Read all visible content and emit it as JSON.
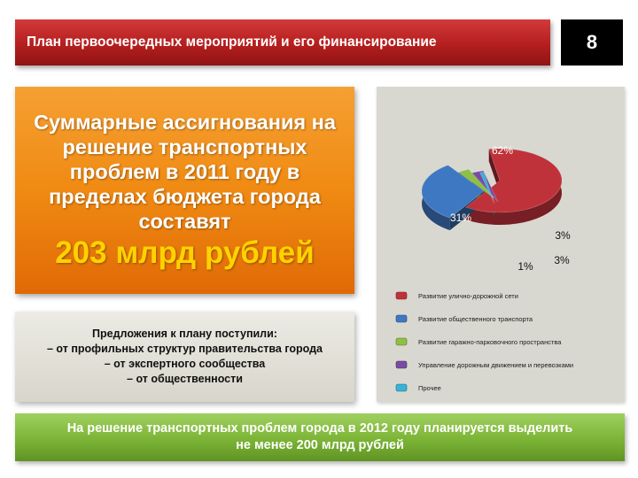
{
  "header": {
    "title": "План первоочередных мероприятий и его финансирование",
    "page_number": "8"
  },
  "summary": {
    "text": "Суммарные ассигнования на решение транспортных проблем в 2011 году в пределах бюджета города составят",
    "amount": "203 млрд рублей"
  },
  "proposals": {
    "lines": [
      "Предложения к плану поступили:",
      "– от профильных структур правительства города",
      "– от экспертного сообщества",
      "– от общественности"
    ]
  },
  "footer": {
    "lines": [
      "На решение транспортных проблем города в 2012 году планируется выделить",
      "не менее 200 млрд рублей"
    ]
  },
  "chart_data": {
    "type": "pie",
    "categories": [
      "Развитие улично-дорожной сети",
      "Развитие общественного транспорта",
      "Развитие гаражно-парковочного пространства",
      "Управление дорожным движением и перевозками",
      "Прочее"
    ],
    "values": [
      62,
      31,
      3,
      3,
      1
    ],
    "labels": [
      "62%",
      "31%",
      "3%",
      "3%",
      "1%"
    ],
    "colors": [
      "#c0323a",
      "#3f78c2",
      "#8dc045",
      "#7a4aa3",
      "#38b3d6"
    ],
    "title": "",
    "legend_position": "bottom"
  }
}
